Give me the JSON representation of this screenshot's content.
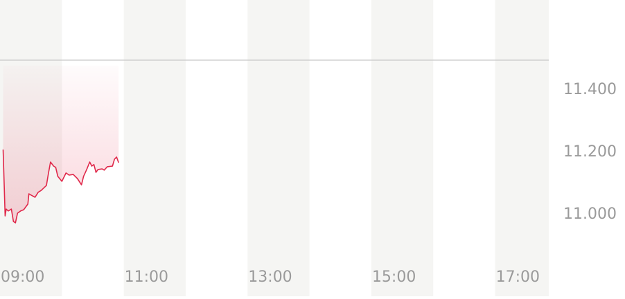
{
  "chart_data": {
    "type": "area",
    "title": "",
    "xlabel": "",
    "ylabel": "",
    "x_ticks": [
      "09:00",
      "11:00",
      "13:00",
      "15:00",
      "17:00"
    ],
    "y_ticks": [
      "11.400",
      "11.200",
      "11.000"
    ],
    "y_tick_values": [
      11.4,
      11.2,
      11.0
    ],
    "xlim": [
      "09:00",
      "17:52"
    ],
    "ylim": [
      10.84,
      11.684
    ],
    "reference_line": 11.491,
    "hourly_bands": true,
    "colors": {
      "line": "#e0284a",
      "fill": "#e8405e",
      "band": "#f5f5f3",
      "reference": "#cccccc",
      "tick_label": "#9a9a9a"
    },
    "series": [
      {
        "x": [
          "09:03",
          "09:05",
          "09:06",
          "09:08",
          "09:11",
          "09:13",
          "09:15",
          "09:17",
          "09:20",
          "09:23",
          "09:27",
          "09:28",
          "09:30",
          "09:34",
          "09:37",
          "09:40",
          "09:45",
          "09:47",
          "09:49",
          "09:52",
          "09:54",
          "09:56",
          "10:00",
          "10:04",
          "10:07",
          "10:11",
          "10:15",
          "10:19",
          "10:21",
          "10:24",
          "10:27",
          "10:29",
          "10:31",
          "10:33",
          "10:35",
          "10:39",
          "10:41",
          "10:44",
          "10:49",
          "10:51",
          "10:53",
          "10:55"
        ],
        "values": [
          11.204,
          10.991,
          11.013,
          11.007,
          11.013,
          10.973,
          10.969,
          11.0,
          11.007,
          11.011,
          11.029,
          11.062,
          11.058,
          11.051,
          11.067,
          11.073,
          11.089,
          11.129,
          11.164,
          11.151,
          11.147,
          11.118,
          11.102,
          11.129,
          11.122,
          11.124,
          11.111,
          11.091,
          11.118,
          11.14,
          11.164,
          11.151,
          11.156,
          11.131,
          11.14,
          11.142,
          11.138,
          11.149,
          11.151,
          11.173,
          11.18,
          11.162
        ]
      }
    ]
  }
}
